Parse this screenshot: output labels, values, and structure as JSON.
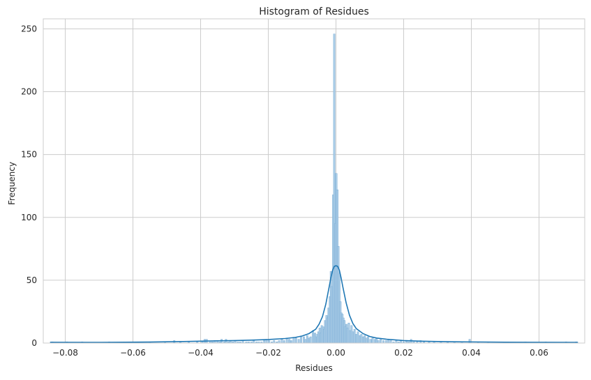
{
  "chart_data": {
    "type": "bar",
    "subtype": "histogram_with_kde",
    "title": "Histogram of Residues",
    "xlabel": "Residues",
    "ylabel": "Frequency",
    "xlim": [
      -0.0865,
      0.0735
    ],
    "ylim": [
      0,
      258
    ],
    "x_ticks": [
      -0.08,
      -0.06,
      -0.04,
      -0.02,
      0.0,
      0.02,
      0.04,
      0.06
    ],
    "x_tick_labels": [
      "−0.08",
      "−0.06",
      "−0.04",
      "−0.02",
      "0.00",
      "0.02",
      "0.04",
      "0.06"
    ],
    "y_ticks": [
      0,
      50,
      100,
      150,
      200,
      250
    ],
    "y_tick_labels": [
      "0",
      "50",
      "100",
      "150",
      "200",
      "250"
    ],
    "grid": true,
    "colors": {
      "bar_fill": "#a9cbe6",
      "bar_edge": "#6fa7d2",
      "kde": "#1f77b4",
      "grid": "#cccccc"
    },
    "bin_width": 0.0005,
    "bins": [
      [
        -0.0838,
        1
      ],
      [
        -0.0795,
        1
      ],
      [
        -0.075,
        1
      ],
      [
        -0.067,
        1
      ],
      [
        -0.0605,
        1
      ],
      [
        -0.055,
        1
      ],
      [
        -0.0505,
        1
      ],
      [
        -0.0478,
        2
      ],
      [
        -0.046,
        1
      ],
      [
        -0.0435,
        1
      ],
      [
        -0.041,
        1
      ],
      [
        -0.0395,
        1
      ],
      [
        -0.0388,
        3
      ],
      [
        -0.0382,
        3
      ],
      [
        -0.0372,
        1
      ],
      [
        -0.0365,
        1
      ],
      [
        -0.0358,
        2
      ],
      [
        -0.035,
        2
      ],
      [
        -0.0343,
        1
      ],
      [
        -0.0338,
        3
      ],
      [
        -0.033,
        1
      ],
      [
        -0.0325,
        3
      ],
      [
        -0.0318,
        1
      ],
      [
        -0.0312,
        2
      ],
      [
        -0.0305,
        1
      ],
      [
        -0.0298,
        2
      ],
      [
        -0.029,
        1
      ],
      [
        -0.0283,
        1
      ],
      [
        -0.0275,
        2
      ],
      [
        -0.0265,
        1
      ],
      [
        -0.0258,
        1
      ],
      [
        -0.025,
        1
      ],
      [
        -0.0243,
        2
      ],
      [
        -0.0235,
        1
      ],
      [
        -0.0228,
        1
      ],
      [
        -0.022,
        1
      ],
      [
        -0.0212,
        2
      ],
      [
        -0.0205,
        3
      ],
      [
        -0.0198,
        2
      ],
      [
        -0.019,
        1
      ],
      [
        -0.0183,
        2
      ],
      [
        -0.0175,
        1
      ],
      [
        -0.0168,
        2
      ],
      [
        -0.016,
        3
      ],
      [
        -0.0153,
        2
      ],
      [
        -0.0145,
        4
      ],
      [
        -0.0138,
        3
      ],
      [
        -0.0132,
        2
      ],
      [
        -0.0125,
        4
      ],
      [
        -0.0118,
        4
      ],
      [
        -0.011,
        3
      ],
      [
        -0.0103,
        5
      ],
      [
        -0.0095,
        5
      ],
      [
        -0.009,
        3
      ],
      [
        -0.0085,
        6
      ],
      [
        -0.008,
        4
      ],
      [
        -0.0075,
        5
      ],
      [
        -0.0068,
        10
      ],
      [
        -0.0062,
        8
      ],
      [
        -0.0058,
        5
      ],
      [
        -0.0055,
        7
      ],
      [
        -0.0052,
        9
      ],
      [
        -0.0048,
        12
      ],
      [
        -0.0045,
        8
      ],
      [
        -0.0042,
        14
      ],
      [
        -0.0038,
        13
      ],
      [
        -0.0035,
        11
      ],
      [
        -0.0032,
        18
      ],
      [
        -0.0028,
        22
      ],
      [
        -0.0025,
        20
      ],
      [
        -0.0022,
        28
      ],
      [
        -0.0018,
        37
      ],
      [
        -0.0015,
        57
      ],
      [
        -0.0012,
        45
      ],
      [
        -0.0008,
        118
      ],
      [
        -0.0005,
        246
      ],
      [
        -0.0002,
        95
      ],
      [
        0.0001,
        135
      ],
      [
        0.0004,
        122
      ],
      [
        0.0007,
        77
      ],
      [
        0.001,
        55
      ],
      [
        0.0013,
        33
      ],
      [
        0.0016,
        24
      ],
      [
        0.0019,
        23
      ],
      [
        0.0022,
        20
      ],
      [
        0.0025,
        18
      ],
      [
        0.0028,
        13
      ],
      [
        0.0031,
        15
      ],
      [
        0.0034,
        12
      ],
      [
        0.0038,
        16
      ],
      [
        0.0042,
        10
      ],
      [
        0.0046,
        14
      ],
      [
        0.005,
        9
      ],
      [
        0.0055,
        11
      ],
      [
        0.006,
        7
      ],
      [
        0.0065,
        9
      ],
      [
        0.007,
        6
      ],
      [
        0.0075,
        7
      ],
      [
        0.008,
        5
      ],
      [
        0.0085,
        6
      ],
      [
        0.009,
        4
      ],
      [
        0.0095,
        5
      ],
      [
        0.0102,
        3
      ],
      [
        0.0108,
        4
      ],
      [
        0.0115,
        3
      ],
      [
        0.012,
        4
      ],
      [
        0.0125,
        2
      ],
      [
        0.0132,
        3
      ],
      [
        0.014,
        2
      ],
      [
        0.0148,
        2
      ],
      [
        0.0155,
        3
      ],
      [
        0.0162,
        2
      ],
      [
        0.017,
        1
      ],
      [
        0.0178,
        2
      ],
      [
        0.0185,
        1
      ],
      [
        0.0192,
        2
      ],
      [
        0.02,
        1
      ],
      [
        0.0208,
        2
      ],
      [
        0.0215,
        1
      ],
      [
        0.0222,
        3
      ],
      [
        0.023,
        1
      ],
      [
        0.024,
        1
      ],
      [
        0.025,
        2
      ],
      [
        0.026,
        1
      ],
      [
        0.0275,
        1
      ],
      [
        0.029,
        1
      ],
      [
        0.031,
        1
      ],
      [
        0.033,
        1
      ],
      [
        0.035,
        1
      ],
      [
        0.0372,
        1
      ],
      [
        0.0395,
        3
      ],
      [
        0.042,
        1
      ],
      [
        0.045,
        1
      ],
      [
        0.05,
        1
      ],
      [
        0.056,
        1
      ],
      [
        0.062,
        1
      ],
      [
        0.068,
        1
      ],
      [
        0.071,
        1
      ]
    ],
    "kde_points": [
      [
        -0.0845,
        0.6
      ],
      [
        -0.07,
        0.5
      ],
      [
        -0.055,
        0.8
      ],
      [
        -0.045,
        1.2
      ],
      [
        -0.04,
        1.5
      ],
      [
        -0.035,
        1.8
      ],
      [
        -0.03,
        2.0
      ],
      [
        -0.025,
        2.3
      ],
      [
        -0.02,
        2.8
      ],
      [
        -0.015,
        3.6
      ],
      [
        -0.012,
        4.5
      ],
      [
        -0.01,
        5.6
      ],
      [
        -0.008,
        7.5
      ],
      [
        -0.006,
        11
      ],
      [
        -0.005,
        15
      ],
      [
        -0.004,
        21
      ],
      [
        -0.003,
        31
      ],
      [
        -0.002,
        45
      ],
      [
        -0.0015,
        52
      ],
      [
        -0.001,
        58
      ],
      [
        -0.0005,
        61
      ],
      [
        0.0,
        61.5
      ],
      [
        0.0005,
        61
      ],
      [
        0.001,
        58
      ],
      [
        0.0015,
        52
      ],
      [
        0.002,
        45
      ],
      [
        0.003,
        32
      ],
      [
        0.004,
        22
      ],
      [
        0.005,
        15.5
      ],
      [
        0.006,
        11.5
      ],
      [
        0.008,
        7.5
      ],
      [
        0.01,
        5.2
      ],
      [
        0.012,
        4.0
      ],
      [
        0.015,
        3.0
      ],
      [
        0.02,
        2.0
      ],
      [
        0.025,
        1.5
      ],
      [
        0.03,
        1.2
      ],
      [
        0.035,
        1.0
      ],
      [
        0.04,
        0.9
      ],
      [
        0.05,
        0.7
      ],
      [
        0.06,
        0.6
      ],
      [
        0.0715,
        0.5
      ]
    ]
  }
}
